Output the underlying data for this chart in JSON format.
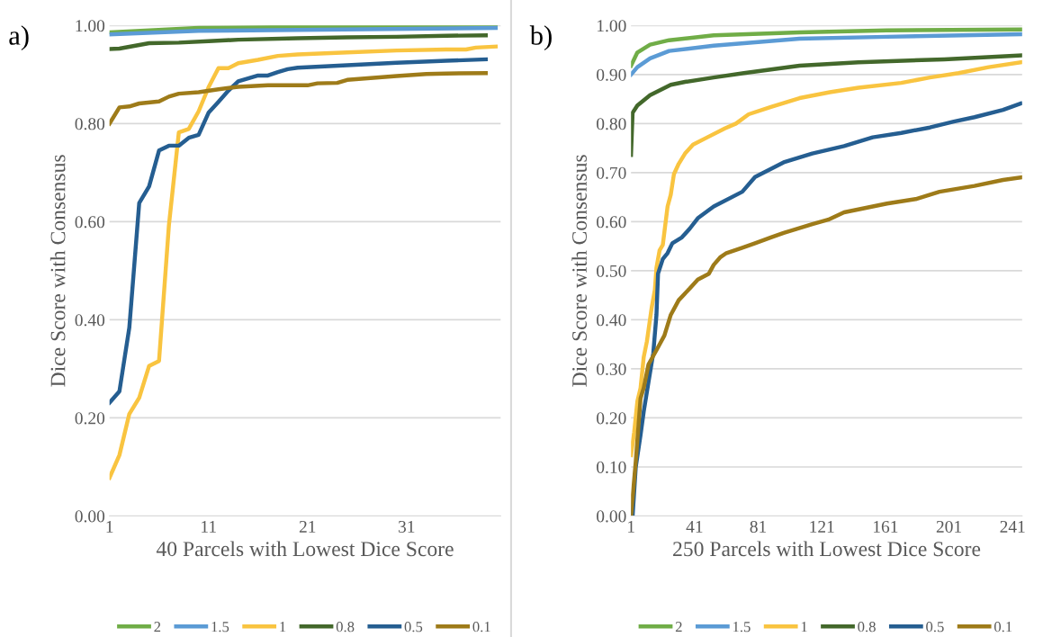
{
  "chart_data": [
    {
      "type": "line",
      "annotations": [
        "a)"
      ],
      "xlabel": "40 Parcels with Lowest Dice Score",
      "ylabel": "Dice Score with Consensus",
      "xlim": [
        1,
        40.5
      ],
      "xticks": [
        1,
        11,
        21,
        31
      ],
      "ylim": [
        0,
        1.0
      ],
      "yticks": [
        {
          "value": 0,
          "label": "0.00"
        },
        {
          "value": 0.2,
          "label": "0.20"
        },
        {
          "value": 0.4,
          "label": "0.40"
        },
        {
          "value": 0.6,
          "label": "0.60"
        },
        {
          "value": 0.8,
          "label": "0.80"
        },
        {
          "value": 1.0,
          "label": "1.00"
        }
      ],
      "grid": "y",
      "legend": "bottom",
      "marker": "none",
      "line_style": "solid",
      "series": [
        {
          "name": "2",
          "color": "#70ad47",
          "x": [
            1,
            10,
            20,
            40
          ],
          "values": [
            0.986,
            0.995,
            0.997,
            1.0
          ]
        },
        {
          "name": "1.5",
          "color": "#5b9bd5",
          "x": [
            1,
            10,
            20,
            40
          ],
          "values": [
            0.982,
            0.989,
            0.991,
            0.995
          ]
        },
        {
          "name": "1",
          "color": "#f9c440",
          "x": [
            1,
            2,
            3,
            4,
            5,
            6,
            7,
            8,
            9,
            10,
            11,
            12,
            13,
            14,
            16,
            18,
            20,
            25,
            30,
            35,
            37,
            38,
            40
          ],
          "values": [
            0.078,
            0.124,
            0.208,
            0.241,
            0.306,
            0.316,
            0.593,
            0.782,
            0.789,
            0.825,
            0.874,
            0.913,
            0.913,
            0.923,
            0.93,
            0.938,
            0.941,
            0.945,
            0.949,
            0.951,
            0.951,
            0.955,
            0.957
          ]
        },
        {
          "name": "0.8",
          "color": "#43682b",
          "x": [
            1,
            2,
            5,
            8,
            11,
            14,
            20,
            25,
            30,
            35,
            39
          ],
          "values": [
            0.952,
            0.953,
            0.964,
            0.965,
            0.968,
            0.971,
            0.974,
            0.976,
            0.977,
            0.979,
            0.98
          ]
        },
        {
          "name": "0.5",
          "color": "#255e91",
          "x": [
            1,
            2,
            3,
            4,
            5,
            6,
            7,
            8,
            9,
            10,
            11,
            12,
            13,
            14,
            16,
            17,
            18,
            19,
            20,
            25,
            30,
            35,
            39
          ],
          "values": [
            0.231,
            0.254,
            0.384,
            0.638,
            0.672,
            0.745,
            0.755,
            0.755,
            0.771,
            0.777,
            0.822,
            0.844,
            0.867,
            0.886,
            0.898,
            0.898,
            0.905,
            0.911,
            0.914,
            0.919,
            0.924,
            0.928,
            0.931
          ]
        },
        {
          "name": "0.1",
          "color": "#9e7b19",
          "x": [
            1,
            2,
            3,
            4,
            6,
            7,
            8,
            10,
            12,
            14,
            17,
            21,
            22,
            24,
            25,
            30,
            33,
            35,
            39
          ],
          "values": [
            0.8,
            0.833,
            0.835,
            0.841,
            0.845,
            0.855,
            0.861,
            0.864,
            0.87,
            0.875,
            0.878,
            0.878,
            0.882,
            0.883,
            0.889,
            0.897,
            0.901,
            0.902,
            0.903
          ]
        }
      ]
    },
    {
      "type": "line",
      "annotations": [
        "b)"
      ],
      "xlabel": "250 Parcels with Lowest Dice Score",
      "ylabel": "Dice Score with Consensus",
      "xlim": [
        1,
        247
      ],
      "xticks": [
        1,
        41,
        81,
        121,
        161,
        201,
        241
      ],
      "ylim": [
        0,
        1.0
      ],
      "yticks": [
        {
          "value": 0,
          "label": "0.00"
        },
        {
          "value": 0.1,
          "label": "0.10"
        },
        {
          "value": 0.2,
          "label": "0.20"
        },
        {
          "value": 0.3,
          "label": "0.30"
        },
        {
          "value": 0.4,
          "label": "0.40"
        },
        {
          "value": 0.5,
          "label": "0.50"
        },
        {
          "value": 0.6,
          "label": "0.60"
        },
        {
          "value": 0.7,
          "label": "0.70"
        },
        {
          "value": 0.8,
          "label": "0.80"
        },
        {
          "value": 0.9,
          "label": "0.90"
        },
        {
          "value": 1.0,
          "label": "1.00"
        }
      ],
      "grid": "y",
      "legend": "bottom",
      "marker": "none",
      "line_style": "solid",
      "series": [
        {
          "name": "2",
          "color": "#70ad47",
          "x": [
            1,
            5,
            13,
            25,
            53,
            107,
            162,
            246
          ],
          "values": [
            0.918,
            0.945,
            0.961,
            0.97,
            0.98,
            0.986,
            0.99,
            0.992
          ]
        },
        {
          "name": "1.5",
          "color": "#5b9bd5",
          "x": [
            1,
            5,
            13,
            25,
            53,
            107,
            162,
            246
          ],
          "values": [
            0.9,
            0.915,
            0.933,
            0.948,
            0.959,
            0.973,
            0.977,
            0.982
          ]
        },
        {
          "name": "1",
          "color": "#f9c440",
          "x": [
            1,
            3,
            5,
            7,
            9,
            11,
            14,
            16,
            17,
            19,
            21,
            24,
            26,
            28,
            31,
            35,
            40,
            49,
            60,
            67,
            75,
            89,
            107,
            126,
            144,
            171,
            189,
            207,
            226,
            246
          ],
          "values": [
            0.124,
            0.171,
            0.234,
            0.261,
            0.324,
            0.356,
            0.425,
            0.461,
            0.506,
            0.542,
            0.553,
            0.631,
            0.655,
            0.697,
            0.718,
            0.739,
            0.757,
            0.772,
            0.79,
            0.8,
            0.819,
            0.834,
            0.852,
            0.864,
            0.873,
            0.883,
            0.894,
            0.903,
            0.915,
            0.925
          ]
        },
        {
          "name": "0.8",
          "color": "#43682b",
          "x": [
            1,
            2,
            5,
            13,
            26,
            35,
            53,
            72,
            107,
            144,
            198,
            246
          ],
          "values": [
            0.736,
            0.822,
            0.837,
            0.858,
            0.879,
            0.885,
            0.894,
            0.903,
            0.918,
            0.925,
            0.931,
            0.939
          ]
        },
        {
          "name": "0.5",
          "color": "#255e91",
          "x": [
            2,
            4,
            7,
            9,
            12,
            15,
            17,
            18,
            21,
            24,
            27,
            33,
            38,
            43,
            53,
            71,
            79,
            97,
            115,
            135,
            153,
            171,
            189,
            204,
            217,
            235,
            246
          ],
          "values": [
            0.0,
            0.1,
            0.165,
            0.213,
            0.273,
            0.332,
            0.41,
            0.494,
            0.524,
            0.536,
            0.556,
            0.568,
            0.586,
            0.607,
            0.631,
            0.661,
            0.691,
            0.721,
            0.739,
            0.754,
            0.772,
            0.781,
            0.792,
            0.804,
            0.813,
            0.828,
            0.841
          ]
        },
        {
          "name": "0.1",
          "color": "#9e7b19",
          "x": [
            1,
            4,
            7,
            9,
            12,
            17,
            22,
            26,
            31,
            38,
            43,
            50,
            53,
            57,
            61,
            71,
            79,
            89,
            97,
            115,
            125,
            135,
            162,
            180,
            195,
            217,
            235,
            246
          ],
          "values": [
            0.0,
            0.112,
            0.24,
            0.261,
            0.309,
            0.338,
            0.368,
            0.41,
            0.44,
            0.464,
            0.482,
            0.494,
            0.512,
            0.527,
            0.536,
            0.547,
            0.556,
            0.568,
            0.577,
            0.595,
            0.604,
            0.619,
            0.637,
            0.646,
            0.661,
            0.673,
            0.685,
            0.69
          ]
        }
      ]
    }
  ]
}
